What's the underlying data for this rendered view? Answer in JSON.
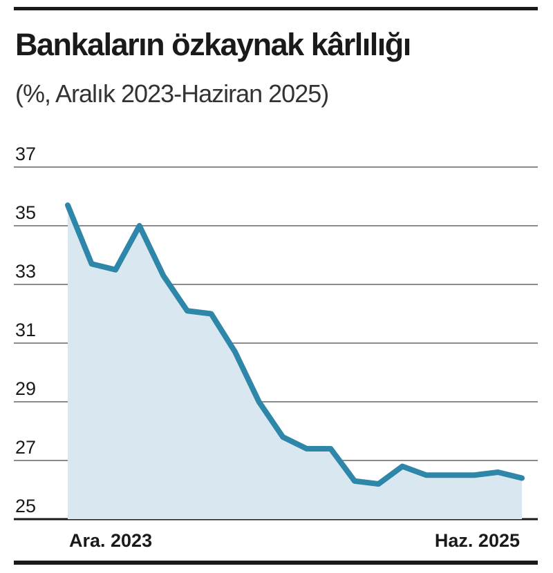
{
  "title": "Bankaların özkaynak kârlılığı",
  "subtitle": "(%, Aralık 2023-Haziran 2025)",
  "colors": {
    "line": "#2e86a8",
    "area": "#d9e7f1",
    "grid": "#8a8a8a",
    "rule": "#1a1a1a"
  },
  "chart_data": {
    "type": "area",
    "title": "Bankaların özkaynak kârlılığı",
    "subtitle": "(%, Aralık 2023-Haziran 2025)",
    "xlabel": "",
    "ylabel": "",
    "x_tick_labels": [
      "Ara. 2023",
      "Haz. 2025"
    ],
    "y_ticks": [
      "37",
      "35",
      "33",
      "31",
      "29",
      "27",
      "25"
    ],
    "ylim": [
      25,
      37
    ],
    "grid": true,
    "series": [
      {
        "values": [
          35.7,
          33.7,
          33.5,
          35.0,
          33.3,
          32.1,
          32.0,
          30.7,
          29.0,
          27.8,
          27.4,
          27.4,
          26.3,
          26.2,
          26.8,
          26.5,
          26.5,
          26.5,
          26.6,
          26.4
        ]
      }
    ]
  }
}
